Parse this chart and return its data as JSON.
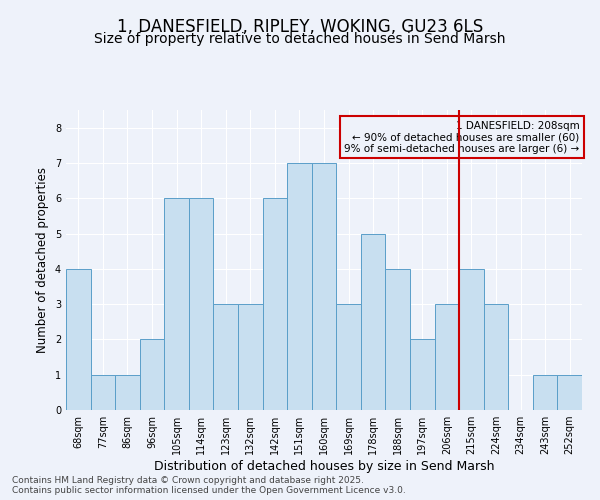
{
  "title": "1, DANESFIELD, RIPLEY, WOKING, GU23 6LS",
  "subtitle": "Size of property relative to detached houses in Send Marsh",
  "xlabel": "Distribution of detached houses by size in Send Marsh",
  "ylabel": "Number of detached properties",
  "categories": [
    "68sqm",
    "77sqm",
    "86sqm",
    "96sqm",
    "105sqm",
    "114sqm",
    "123sqm",
    "132sqm",
    "142sqm",
    "151sqm",
    "160sqm",
    "169sqm",
    "178sqm",
    "188sqm",
    "197sqm",
    "206sqm",
    "215sqm",
    "224sqm",
    "234sqm",
    "243sqm",
    "252sqm"
  ],
  "values": [
    4,
    1,
    1,
    2,
    6,
    6,
    3,
    3,
    6,
    7,
    7,
    3,
    5,
    4,
    2,
    3,
    4,
    3,
    0,
    1,
    1
  ],
  "bar_color": "#c8dff0",
  "bar_edge_color": "#5a9ec9",
  "red_line_index": 15.5,
  "red_line_color": "#cc0000",
  "annotation_text": "1 DANESFIELD: 208sqm\n← 90% of detached houses are smaller (60)\n9% of semi-detached houses are larger (6) →",
  "footer_text": "Contains HM Land Registry data © Crown copyright and database right 2025.\nContains public sector information licensed under the Open Government Licence v3.0.",
  "ylim": [
    0,
    8.5
  ],
  "yticks": [
    0,
    1,
    2,
    3,
    4,
    5,
    6,
    7,
    8
  ],
  "background_color": "#eef2fa",
  "grid_color": "#ffffff",
  "title_fontsize": 12,
  "subtitle_fontsize": 10,
  "ylabel_fontsize": 8.5,
  "xlabel_fontsize": 9,
  "tick_fontsize": 7,
  "annotation_fontsize": 7.5,
  "footer_fontsize": 6.5
}
